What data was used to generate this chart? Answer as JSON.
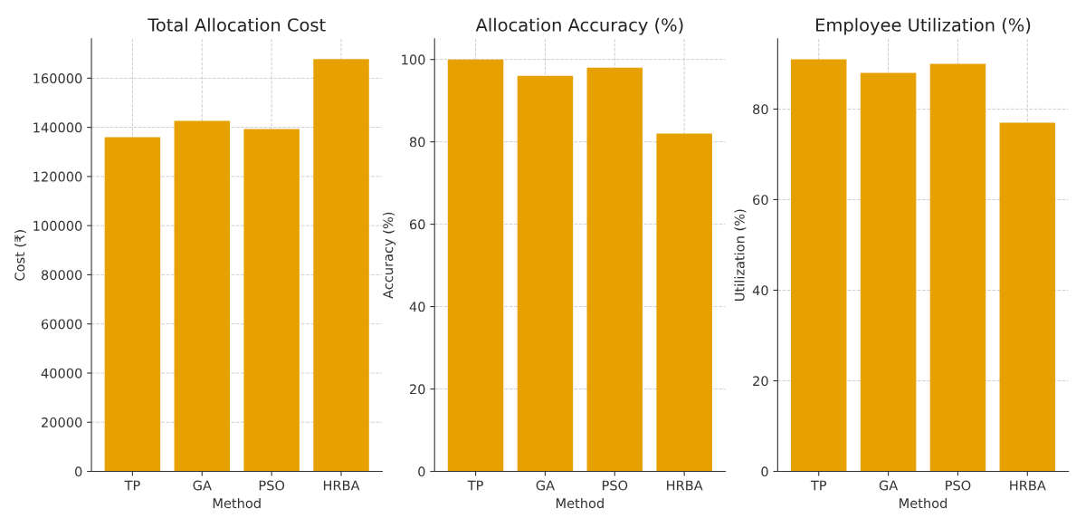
{
  "chart_data": [
    {
      "type": "bar",
      "title": "Total Allocation Cost",
      "xlabel": "Method",
      "ylabel": "Cost (₹)",
      "categories": [
        "TP",
        "GA",
        "PSO",
        "HRBA"
      ],
      "values": [
        136000,
        142600,
        139300,
        167800
      ],
      "color": "#e6a000",
      "ylim": [
        0,
        176000
      ],
      "yticks": [
        0,
        20000,
        40000,
        60000,
        80000,
        100000,
        120000,
        140000,
        160000
      ],
      "grid": true
    },
    {
      "type": "bar",
      "title": "Allocation Accuracy (%)",
      "xlabel": "Method",
      "ylabel": "Accuracy (%)",
      "categories": [
        "TP",
        "GA",
        "PSO",
        "HRBA"
      ],
      "values": [
        100,
        96,
        98,
        82
      ],
      "color": "#e6a000",
      "ylim": [
        0,
        105
      ],
      "yticks": [
        0,
        20,
        40,
        60,
        80,
        100
      ],
      "grid": true
    },
    {
      "type": "bar",
      "title": "Employee Utilization (%)",
      "xlabel": "Method",
      "ylabel": "Utilization (%)",
      "categories": [
        "TP",
        "GA",
        "PSO",
        "HRBA"
      ],
      "values": [
        91,
        88,
        90,
        77
      ],
      "color": "#e6a000",
      "ylim": [
        0,
        95.5
      ],
      "yticks": [
        0,
        20,
        40,
        60,
        80
      ],
      "grid": true
    }
  ]
}
